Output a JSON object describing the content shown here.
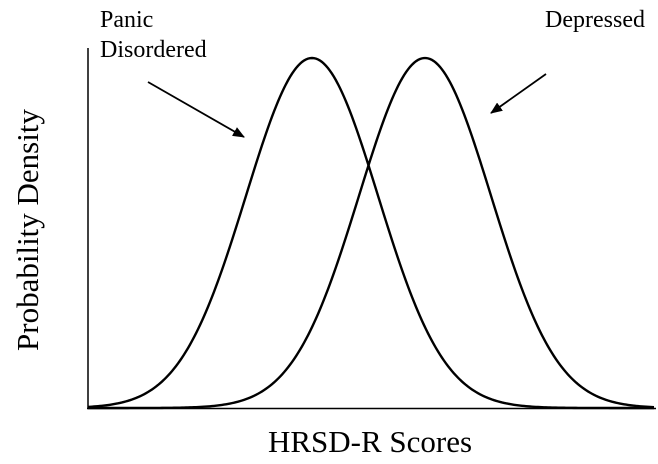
{
  "x_axis_label": "HRSD-R Scores",
  "y_axis_label": "Probability Density",
  "annotations": [
    "Panic",
    "Disordered",
    "Depressed"
  ]
}
